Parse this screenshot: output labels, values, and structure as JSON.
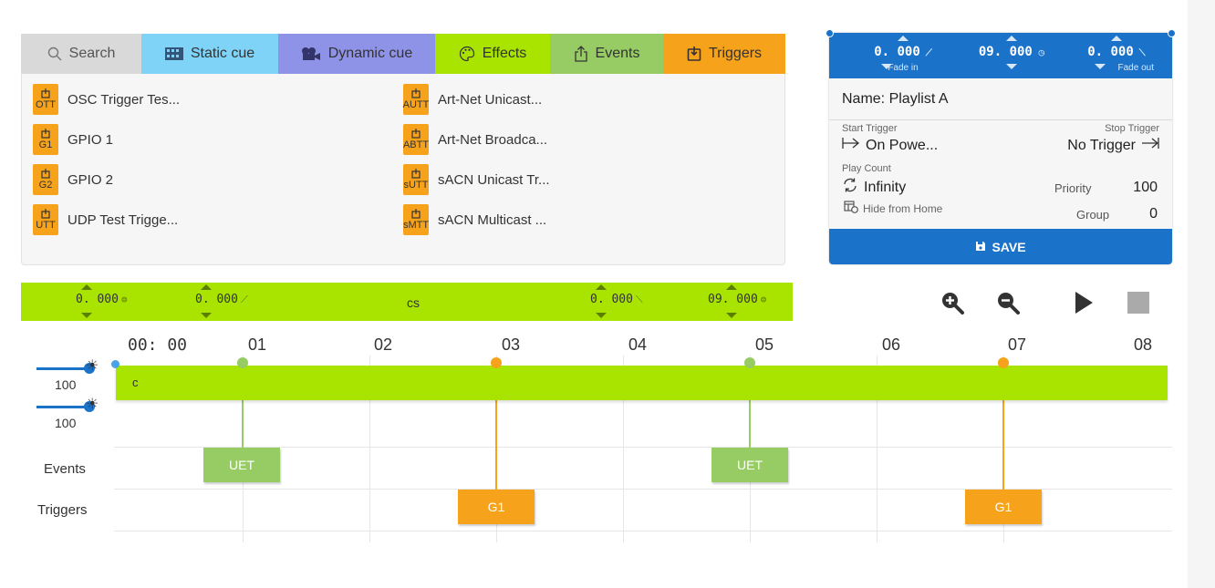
{
  "colors": {
    "search": "#d9d9d9",
    "static": "#7fd3f7",
    "dynamic": "#8f93e8",
    "effects": "#a9e400",
    "events": "#97cc64",
    "triggers": "#f7a21b",
    "blue": "#1a72c9",
    "green": "#a9e400"
  },
  "tabs": {
    "search": "Search",
    "static": "Static cue",
    "dynamic": "Dynamic cue",
    "effects": "Effects",
    "events": "Events",
    "triggers": "Triggers"
  },
  "triggers_list": [
    {
      "code": "OTT",
      "label": "OSC Trigger Tes..."
    },
    {
      "code": "G1",
      "label": "GPIO 1"
    },
    {
      "code": "G2",
      "label": "GPIO 2"
    },
    {
      "code": "UTT",
      "label": "UDP Test Trigge..."
    },
    {
      "code": "AUTT",
      "label": "Art-Net Unicast..."
    },
    {
      "code": "ABTT",
      "label": "Art-Net Broadca..."
    },
    {
      "code": "sUTT",
      "label": "sACN Unicast Tr..."
    },
    {
      "code": "sMTT",
      "label": "sACN Multicast ..."
    }
  ],
  "props": {
    "fade_in_value": "0. 000",
    "fade_in_label": "Fade in",
    "duration_value": "09. 000",
    "fade_out_value": "0. 000",
    "fade_out_label": "Fade out",
    "name_label": "Name:",
    "name_value": "Playlist A",
    "start_trigger_label": "Start Trigger",
    "start_trigger_value": "On Powe...",
    "stop_trigger_label": "Stop Trigger",
    "stop_trigger_value": "No Trigger",
    "play_count_label": "Play Count",
    "play_count_value": "Infinity",
    "priority_label": "Priority",
    "priority_value": "100",
    "hide_label": "Hide from Home",
    "group_label": "Group",
    "group_value": "0",
    "save_label": "SAVE"
  },
  "toolbar": {
    "v1": "0. 000",
    "v2": "0. 000",
    "mode": "cs",
    "v3": "0. 000",
    "v4": "09. 000"
  },
  "timeline": {
    "ticks": [
      "00: 00",
      "01",
      "02",
      "03",
      "04",
      "05",
      "06",
      "07",
      "08"
    ],
    "cue_label": "c",
    "level_top": "100",
    "level_bottom": "100",
    "events_label": "Events",
    "triggers_label": "Triggers",
    "events": [
      {
        "label": "UET",
        "start_s": 0.7
      },
      {
        "label": "UET",
        "start_s": 4.7
      }
    ],
    "triggers": [
      {
        "label": "G1",
        "start_s": 2.7
      },
      {
        "label": "G1",
        "start_s": 6.7
      }
    ]
  }
}
